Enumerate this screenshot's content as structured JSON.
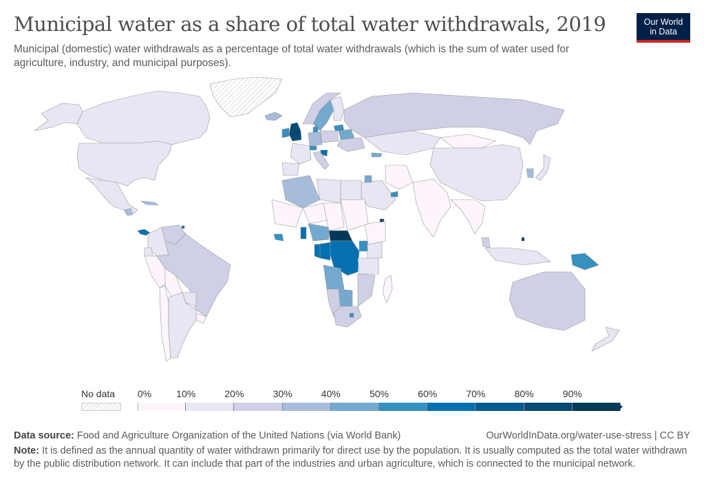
{
  "header": {
    "title": "Municipal water as a share of total water withdrawals, 2019",
    "subtitle": "Municipal (domestic) water withdrawals as a percentage of total water withdrawals (which is the sum of water used for agriculture, industry, and municipal purposes).",
    "logo_line1": "Our World",
    "logo_line2": "in Data"
  },
  "legend": {
    "no_data_label": "No data",
    "ticks": [
      "0%",
      "10%",
      "20%",
      "30%",
      "40%",
      "50%",
      "60%",
      "70%",
      "80%",
      "90%"
    ],
    "bins": [
      {
        "range": "0-10%",
        "color": "#fdf5fb"
      },
      {
        "range": "10-20%",
        "color": "#e8e6f3"
      },
      {
        "range": "20-30%",
        "color": "#cfd0e6"
      },
      {
        "range": "30-40%",
        "color": "#a6bcdb"
      },
      {
        "range": "40-50%",
        "color": "#74a9cf"
      },
      {
        "range": "50-60%",
        "color": "#3690c0"
      },
      {
        "range": "60-70%",
        "color": "#0570b0"
      },
      {
        "range": "70-80%",
        "color": "#045a8d"
      },
      {
        "range": "80-90%",
        "color": "#044a75"
      },
      {
        "range": "90-100%",
        "color": "#023858"
      }
    ],
    "no_data_color": "#eeeeee"
  },
  "chart_data": {
    "type": "choropleth",
    "title": "Municipal water as a share of total water withdrawals, 2019",
    "unit": "%",
    "range": [
      0,
      100
    ],
    "regions": [
      {
        "name": "Canada",
        "bin": "10-20%"
      },
      {
        "name": "United States",
        "bin": "10-20%"
      },
      {
        "name": "Alaska (US)",
        "bin": "10-20%"
      },
      {
        "name": "Greenland",
        "bin": "No data"
      },
      {
        "name": "Iceland",
        "bin": "30-40%"
      },
      {
        "name": "Mexico",
        "bin": "10-20%"
      },
      {
        "name": "Guatemala",
        "bin": "30-40%"
      },
      {
        "name": "Panama",
        "bin": "60-70%"
      },
      {
        "name": "Cuba",
        "bin": "30-40%"
      },
      {
        "name": "Trinidad and Tobago",
        "bin": "60-70%"
      },
      {
        "name": "Venezuela",
        "bin": "20-30%"
      },
      {
        "name": "Colombia",
        "bin": "10-20%"
      },
      {
        "name": "Ecuador",
        "bin": "10-20%"
      },
      {
        "name": "Peru",
        "bin": "0-10%"
      },
      {
        "name": "Brazil",
        "bin": "20-30%"
      },
      {
        "name": "Bolivia",
        "bin": "0-10%"
      },
      {
        "name": "Paraguay",
        "bin": "10-20%"
      },
      {
        "name": "Uruguay",
        "bin": "0-10%"
      },
      {
        "name": "Chile",
        "bin": "0-10%"
      },
      {
        "name": "Argentina",
        "bin": "10-20%"
      },
      {
        "name": "United Kingdom",
        "bin": "80-90%"
      },
      {
        "name": "Ireland",
        "bin": "50-60%"
      },
      {
        "name": "Sweden",
        "bin": "40-50%"
      },
      {
        "name": "Norway",
        "bin": "20-30%"
      },
      {
        "name": "Finland",
        "bin": "10-20%"
      },
      {
        "name": "Denmark",
        "bin": "50-60%"
      },
      {
        "name": "Lithuania",
        "bin": "50-60%"
      },
      {
        "name": "Belarus",
        "bin": "40-50%"
      },
      {
        "name": "Germany",
        "bin": "30-40%"
      },
      {
        "name": "Poland",
        "bin": "20-30%"
      },
      {
        "name": "France",
        "bin": "10-20%"
      },
      {
        "name": "Spain",
        "bin": "10-20%"
      },
      {
        "name": "Switzerland",
        "bin": "50-60%"
      },
      {
        "name": "Croatia",
        "bin": "60-70%"
      },
      {
        "name": "Italy",
        "bin": "20-30%"
      },
      {
        "name": "Ukraine",
        "bin": "20-30%"
      },
      {
        "name": "Georgia",
        "bin": "40-50%"
      },
      {
        "name": "Russia",
        "bin": "20-30%"
      },
      {
        "name": "Kazakhstan",
        "bin": "10-20%"
      },
      {
        "name": "Mongolia",
        "bin": "0-10%"
      },
      {
        "name": "China",
        "bin": "10-20%"
      },
      {
        "name": "South Korea",
        "bin": "30-40%"
      },
      {
        "name": "Japan",
        "bin": "10-20%"
      },
      {
        "name": "India",
        "bin": "0-10%"
      },
      {
        "name": "Iran",
        "bin": "0-10%"
      },
      {
        "name": "Saudi Arabia",
        "bin": "10-20%"
      },
      {
        "name": "UAE",
        "bin": "50-60%"
      },
      {
        "name": "Jordan",
        "bin": "40-50%"
      },
      {
        "name": "Algeria",
        "bin": "30-40%"
      },
      {
        "name": "Nigeria",
        "bin": "40-50%"
      },
      {
        "name": "Benin",
        "bin": "60-70%"
      },
      {
        "name": "Liberia",
        "bin": "50-60%"
      },
      {
        "name": "Central African Republic",
        "bin": "90-100%"
      },
      {
        "name": "DR Congo",
        "bin": "60-70%"
      },
      {
        "name": "Congo",
        "bin": "60-70%"
      },
      {
        "name": "Gabon",
        "bin": "60-70%"
      },
      {
        "name": "Uganda",
        "bin": "50-60%"
      },
      {
        "name": "Djibouti",
        "bin": "80-90%"
      },
      {
        "name": "Angola",
        "bin": "40-50%"
      },
      {
        "name": "Botswana",
        "bin": "40-50%"
      },
      {
        "name": "Namibia",
        "bin": "20-30%"
      },
      {
        "name": "South Africa",
        "bin": "20-30%"
      },
      {
        "name": "Lesotho",
        "bin": "50-60%"
      },
      {
        "name": "Mozambique",
        "bin": "20-30%"
      },
      {
        "name": "Tanzania",
        "bin": "10-20%"
      },
      {
        "name": "Kenya",
        "bin": "10-20%"
      },
      {
        "name": "Ethiopia",
        "bin": "0-10%"
      },
      {
        "name": "Sudan",
        "bin": "0-10%"
      },
      {
        "name": "Egypt",
        "bin": "10-20%"
      },
      {
        "name": "Libya",
        "bin": "10-20%"
      },
      {
        "name": "Mali",
        "bin": "0-10%"
      },
      {
        "name": "Niger",
        "bin": "0-10%"
      },
      {
        "name": "Chad",
        "bin": "0-10%"
      },
      {
        "name": "Madagascar",
        "bin": "0-10%"
      },
      {
        "name": "Australia",
        "bin": "20-30%"
      },
      {
        "name": "New Zealand",
        "bin": "10-20%"
      },
      {
        "name": "Papua New Guinea",
        "bin": "50-60%"
      },
      {
        "name": "Indonesia",
        "bin": "10-20%"
      },
      {
        "name": "Malaysia",
        "bin": "20-30%"
      },
      {
        "name": "Brunei",
        "bin": "90-100%"
      },
      {
        "name": "Southeast Asia (mainland)",
        "bin": "0-10%"
      }
    ]
  },
  "footer": {
    "source_label": "Data source:",
    "source_text": "Food and Agriculture Organization of the United Nations (via World Bank)",
    "url_text": "OurWorldInData.org/water-use-stress | CC BY",
    "note_label": "Note:",
    "note_text": "It is defined as the annual quantity of water withdrawn primarily for direct use by the population. It is usually computed as the total water withdrawn by the public distribution network. It can include that part of the industries and urban agriculture, which is connected to the municipal network."
  }
}
